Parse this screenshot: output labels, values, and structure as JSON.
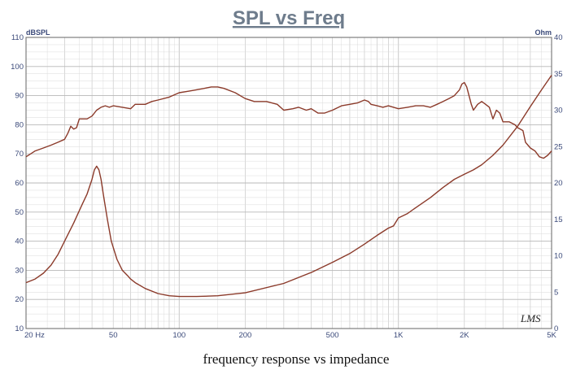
{
  "title": "SPL vs Freq",
  "caption": "frequency response vs impedance",
  "logo_text": "LMS",
  "colors": {
    "curve": "#8b3a2a",
    "grid": "#c8c8c8",
    "frame": "#666666",
    "label": "#3b4a7a",
    "title": "#6e7c8c"
  },
  "chart_data": {
    "type": "line",
    "title": "SPL vs Freq",
    "xlabel": "",
    "ylabel": "dBSPL",
    "y2label": "Ohm",
    "x_scale": "log",
    "xlim": [
      20,
      5000
    ],
    "ylim": [
      10,
      110
    ],
    "y2lim": [
      0,
      40
    ],
    "grid": true,
    "x_tick_values": [
      20,
      50,
      100,
      200,
      500,
      1000,
      2000,
      5000
    ],
    "x_tick_labels": [
      "20  Hz",
      "50",
      "100",
      "200",
      "500",
      "1K",
      "2K",
      "5K"
    ],
    "y_tick_labels": [
      "10",
      "20",
      "30",
      "40",
      "50",
      "60",
      "70",
      "80",
      "90",
      "100",
      "110"
    ],
    "y2_tick_labels": [
      "0",
      "5",
      "10",
      "15",
      "20",
      "25",
      "30",
      "35",
      "40"
    ],
    "series": [
      {
        "axis": "left",
        "points": [
          [
            20,
            69
          ],
          [
            21,
            70
          ],
          [
            22,
            71
          ],
          [
            24,
            72
          ],
          [
            26,
            73
          ],
          [
            28,
            74
          ],
          [
            30,
            75
          ],
          [
            31,
            77
          ],
          [
            32,
            79.5
          ],
          [
            33,
            78.5
          ],
          [
            34,
            79
          ],
          [
            35,
            82
          ],
          [
            36,
            82
          ],
          [
            38,
            82
          ],
          [
            40,
            83
          ],
          [
            42,
            85
          ],
          [
            44,
            86
          ],
          [
            46,
            86.5
          ],
          [
            48,
            86
          ],
          [
            50,
            86.5
          ],
          [
            55,
            86
          ],
          [
            60,
            85.5
          ],
          [
            63,
            87
          ],
          [
            70,
            87
          ],
          [
            75,
            88
          ],
          [
            80,
            88.5
          ],
          [
            90,
            89.5
          ],
          [
            100,
            91
          ],
          [
            110,
            91.5
          ],
          [
            120,
            92
          ],
          [
            130,
            92.5
          ],
          [
            140,
            93
          ],
          [
            150,
            93
          ],
          [
            160,
            92.5
          ],
          [
            180,
            91
          ],
          [
            200,
            89
          ],
          [
            220,
            88
          ],
          [
            250,
            88
          ],
          [
            280,
            87
          ],
          [
            300,
            85
          ],
          [
            330,
            85.5
          ],
          [
            350,
            86
          ],
          [
            380,
            85
          ],
          [
            400,
            85.5
          ],
          [
            430,
            84
          ],
          [
            460,
            84
          ],
          [
            500,
            85
          ],
          [
            550,
            86.5
          ],
          [
            600,
            87
          ],
          [
            650,
            87.5
          ],
          [
            700,
            88.5
          ],
          [
            730,
            88
          ],
          [
            750,
            87
          ],
          [
            800,
            86.5
          ],
          [
            850,
            86
          ],
          [
            900,
            86.5
          ],
          [
            950,
            86
          ],
          [
            1000,
            85.5
          ],
          [
            1100,
            86
          ],
          [
            1200,
            86.5
          ],
          [
            1300,
            86.5
          ],
          [
            1400,
            86
          ],
          [
            1500,
            87
          ],
          [
            1600,
            88
          ],
          [
            1700,
            89
          ],
          [
            1800,
            90
          ],
          [
            1900,
            92
          ],
          [
            1950,
            94
          ],
          [
            2000,
            94.5
          ],
          [
            2050,
            93
          ],
          [
            2100,
            90
          ],
          [
            2150,
            87
          ],
          [
            2200,
            85
          ],
          [
            2300,
            87
          ],
          [
            2400,
            88
          ],
          [
            2500,
            87
          ],
          [
            2600,
            86
          ],
          [
            2700,
            82
          ],
          [
            2800,
            85
          ],
          [
            2900,
            84
          ],
          [
            3000,
            81
          ],
          [
            3200,
            81
          ],
          [
            3400,
            80
          ],
          [
            3500,
            79
          ],
          [
            3700,
            78
          ],
          [
            3800,
            74
          ],
          [
            3900,
            73
          ],
          [
            4000,
            72
          ],
          [
            4200,
            71
          ],
          [
            4400,
            69
          ],
          [
            4600,
            68.5
          ],
          [
            4800,
            69.5
          ],
          [
            5000,
            71
          ]
        ]
      },
      {
        "axis": "right",
        "points": [
          [
            20,
            6.3
          ],
          [
            22,
            6.8
          ],
          [
            24,
            7.6
          ],
          [
            26,
            8.7
          ],
          [
            28,
            10.2
          ],
          [
            30,
            12
          ],
          [
            33,
            14.5
          ],
          [
            36,
            17
          ],
          [
            38,
            18.5
          ],
          [
            40,
            20.5
          ],
          [
            41,
            21.8
          ],
          [
            42,
            22.3
          ],
          [
            43,
            21.8
          ],
          [
            44,
            20.5
          ],
          [
            45,
            18.5
          ],
          [
            47,
            15
          ],
          [
            49,
            12
          ],
          [
            52,
            9.5
          ],
          [
            55,
            8
          ],
          [
            58,
            7.3
          ],
          [
            60,
            6.8
          ],
          [
            63,
            6.3
          ],
          [
            70,
            5.5
          ],
          [
            80,
            4.8
          ],
          [
            90,
            4.5
          ],
          [
            100,
            4.4
          ],
          [
            110,
            4.4
          ],
          [
            120,
            4.4
          ],
          [
            150,
            4.5
          ],
          [
            200,
            4.9
          ],
          [
            300,
            6.2
          ],
          [
            400,
            7.7
          ],
          [
            500,
            9.1
          ],
          [
            600,
            10.3
          ],
          [
            700,
            11.6
          ],
          [
            800,
            12.8
          ],
          [
            900,
            13.8
          ],
          [
            950,
            14.1
          ],
          [
            1000,
            15.2
          ],
          [
            1100,
            15.8
          ],
          [
            1200,
            16.6
          ],
          [
            1400,
            18
          ],
          [
            1600,
            19.4
          ],
          [
            1800,
            20.5
          ],
          [
            2000,
            21.2
          ],
          [
            2200,
            21.8
          ],
          [
            2400,
            22.5
          ],
          [
            2700,
            23.8
          ],
          [
            3000,
            25.2
          ],
          [
            3500,
            27.8
          ],
          [
            4000,
            30.5
          ],
          [
            4500,
            32.8
          ],
          [
            5000,
            34.8
          ]
        ]
      }
    ]
  }
}
